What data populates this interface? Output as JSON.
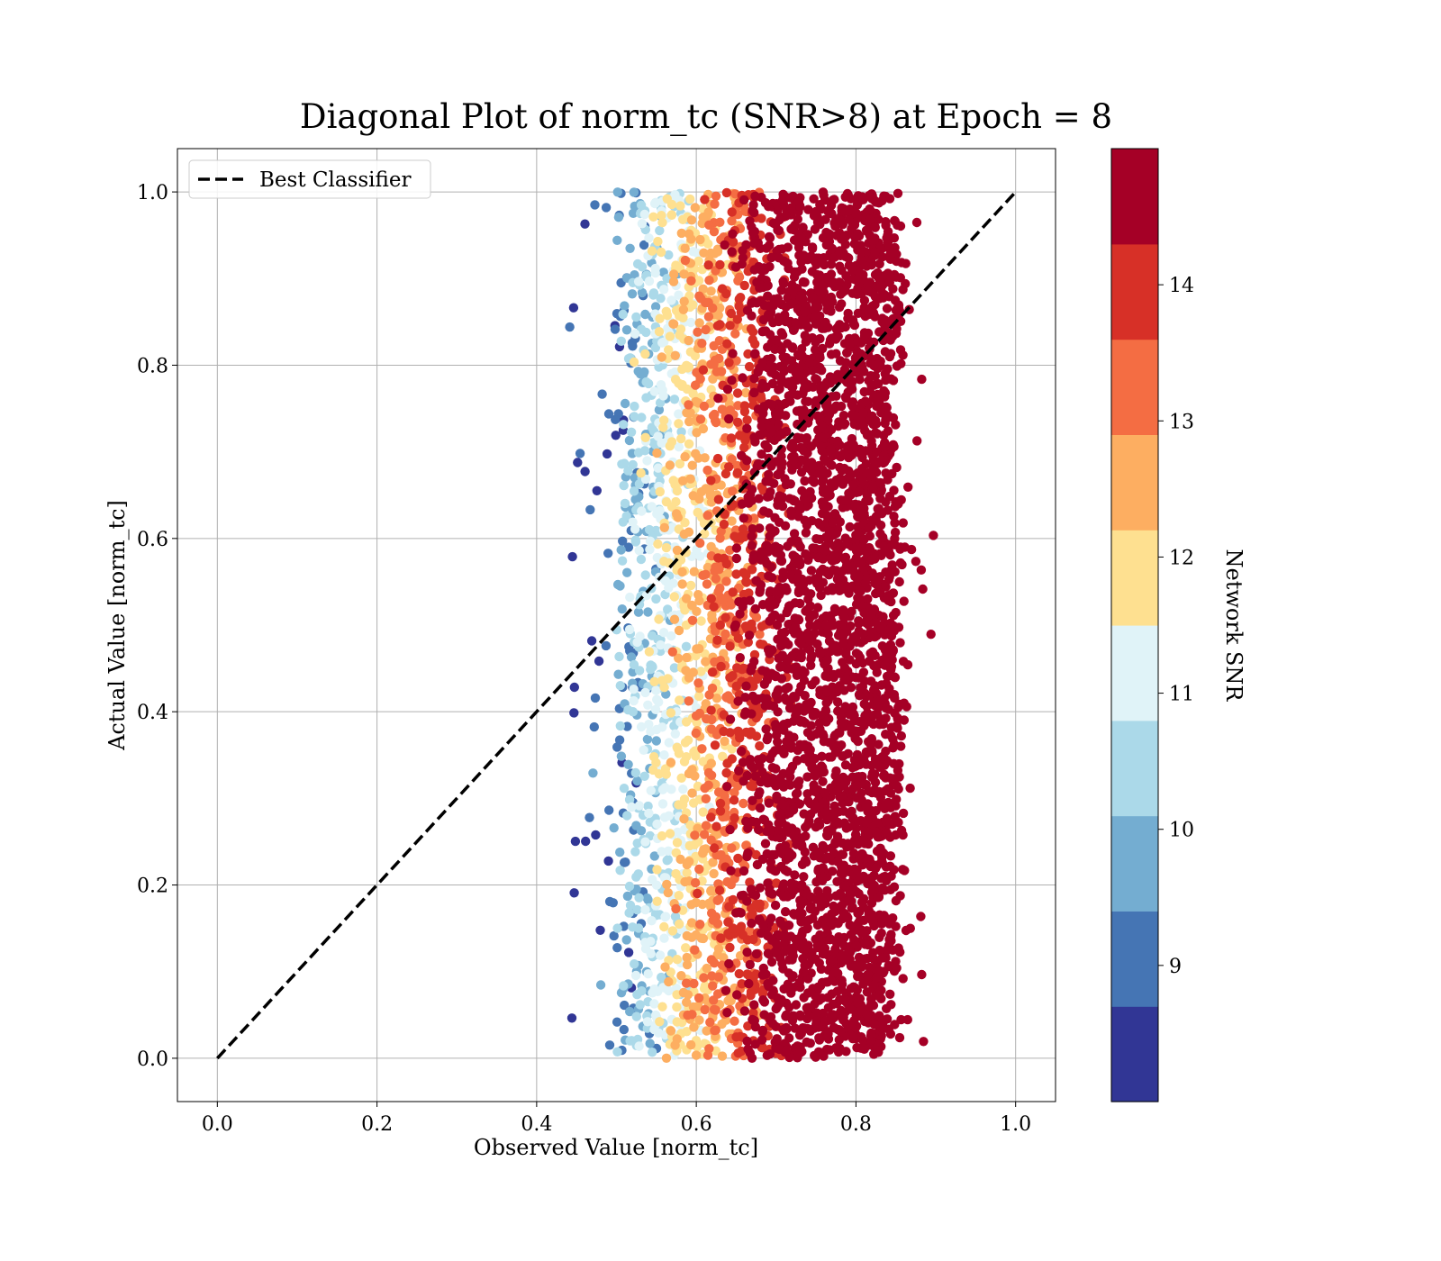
{
  "chart_data": {
    "type": "scatter",
    "title": "Diagonal Plot of norm_tc (SNR>8) at Epoch = 8",
    "xlabel": "Observed Value [norm_tc]",
    "ylabel": "Actual Value [norm_tc]",
    "xlim": [
      -0.05,
      1.05
    ],
    "ylim": [
      -0.05,
      1.05
    ],
    "xticks": [
      "0.0",
      "0.2",
      "0.4",
      "0.6",
      "0.8",
      "1.0"
    ],
    "yticks": [
      "0.0",
      "0.2",
      "0.4",
      "0.6",
      "0.8",
      "1.0"
    ],
    "grid": true,
    "legend": {
      "placement": "upper-left",
      "entries": [
        {
          "label": "Best Classifier",
          "style": "black dashed line"
        }
      ]
    },
    "reference_line": {
      "name": "Best Classifier",
      "x": [
        0.0,
        1.0
      ],
      "y": [
        0.0,
        1.0
      ]
    },
    "scatter_summary": {
      "x_range": [
        0.44,
        0.9
      ],
      "y_range": [
        0.0,
        1.0
      ],
      "color_trend": "SNR increases with observed value; low SNR (blue) near x=0.45-0.52, high SNR (dark red) dominating x>0.65"
    },
    "colorbar": {
      "label": "Network SNR",
      "range": [
        8.0,
        15.0
      ],
      "ticks": [
        "9",
        "10",
        "11",
        "12",
        "13",
        "14"
      ],
      "colors": [
        "#313695",
        "#4575b4",
        "#74add1",
        "#abd9e9",
        "#e0f3f8",
        "#fee090",
        "#fdae61",
        "#f46d43",
        "#d73027",
        "#a50026"
      ]
    }
  }
}
